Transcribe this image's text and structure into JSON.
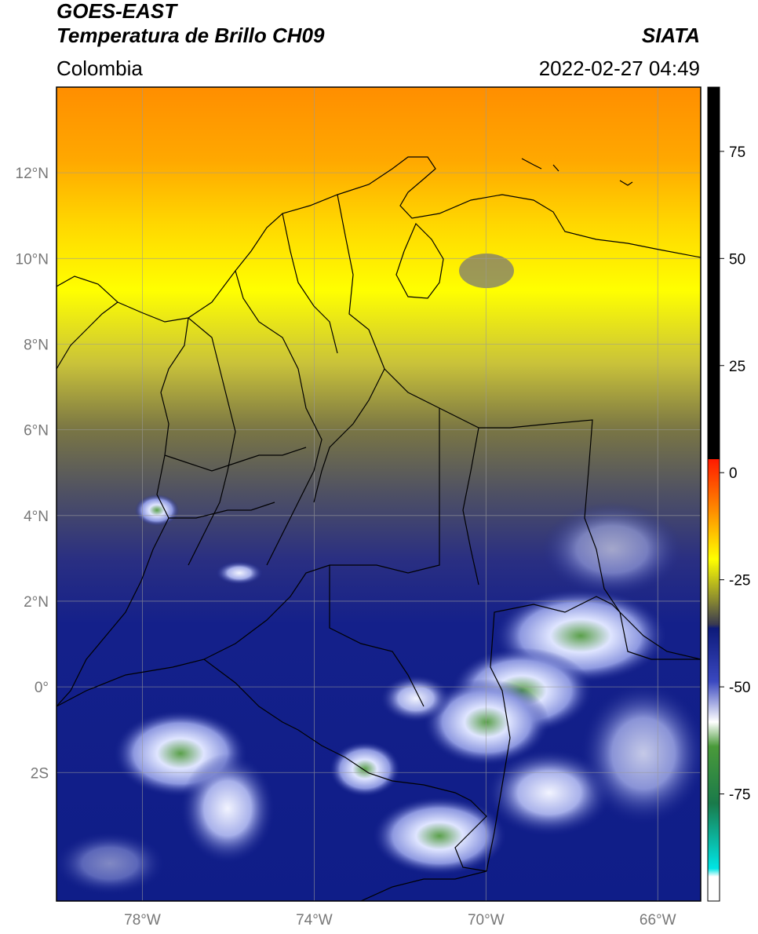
{
  "header": {
    "satellite": "GOES-EAST",
    "product": "Temperatura de Brillo CH09",
    "region": "Colombia",
    "agency": "SIATA",
    "datetime": "2022-02-27 04:49"
  },
  "map": {
    "lon_range": [
      -80,
      -65
    ],
    "lat_range": [
      -5,
      14
    ],
    "lon_ticks": [
      {
        "value": -78,
        "label": "78°W"
      },
      {
        "value": -74,
        "label": "74°W"
      },
      {
        "value": -70,
        "label": "70°W"
      },
      {
        "value": -66,
        "label": "66°W"
      }
    ],
    "lat_ticks": [
      {
        "value": 12,
        "label": "12°N"
      },
      {
        "value": 10,
        "label": "10°N"
      },
      {
        "value": 8,
        "label": "8°N"
      },
      {
        "value": 6,
        "label": "6°N"
      },
      {
        "value": 4,
        "label": "4°N"
      },
      {
        "value": 2,
        "label": "2°N"
      },
      {
        "value": 0,
        "label": "0°"
      },
      {
        "value": -2,
        "label": "2S"
      }
    ],
    "grid": true
  },
  "colorbar": {
    "range": [
      -100,
      90
    ],
    "ticks": [
      {
        "value": 75,
        "label": "75"
      },
      {
        "value": 50,
        "label": "50"
      },
      {
        "value": 25,
        "label": "25"
      },
      {
        "value": 0,
        "label": "0"
      },
      {
        "value": -25,
        "label": "-25"
      },
      {
        "value": -50,
        "label": "-50"
      },
      {
        "value": -75,
        "label": "-75"
      }
    ],
    "colors": {
      "ocean_orange": "#ff8c00",
      "yellow": "#ffff00",
      "olive": "#6b6b2a",
      "navy": "#0d1a7a",
      "cloud_white": "#e8ecff",
      "cloud_green": "#4a9a3a",
      "black": "#000000",
      "red": "#ff1a00",
      "cyan": "#00e5e5"
    }
  }
}
